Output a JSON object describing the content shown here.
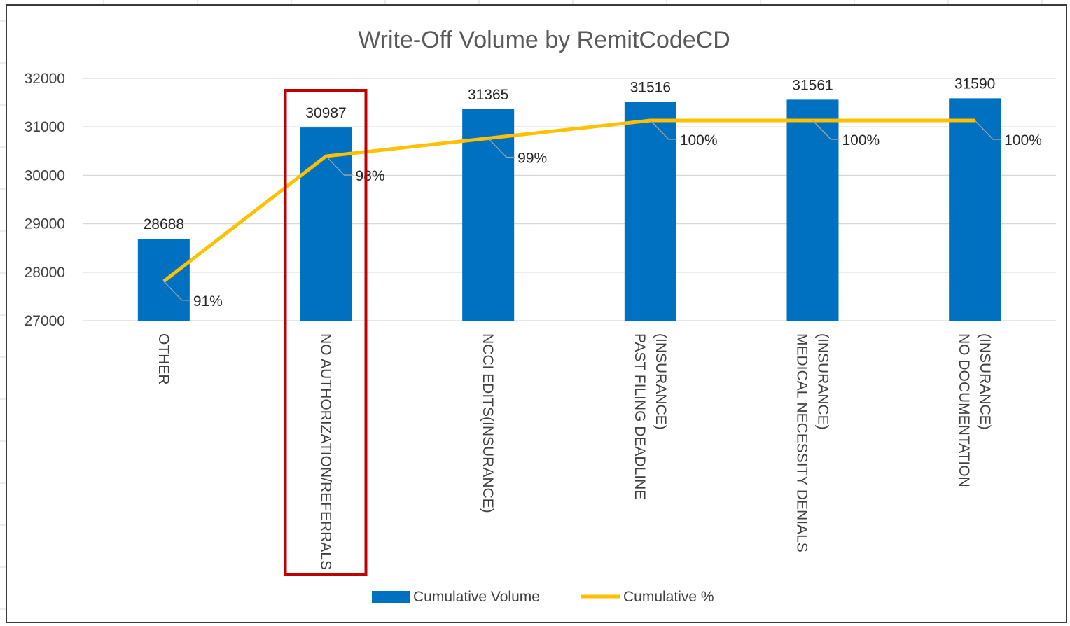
{
  "chart_data": {
    "type": "bar",
    "title": "Write-Off Volume by RemitCodeCD",
    "xlabel": "",
    "ylabel": "",
    "ylim": [
      27000,
      32000
    ],
    "yticks": [
      "27000",
      "28000",
      "29000",
      "30000",
      "31000",
      "32000"
    ],
    "grid": true,
    "legend_position": "bottom",
    "categories": [
      [
        "OTHER"
      ],
      [
        "NO AUTHORIZATION/REFERRALS"
      ],
      [
        "NCCI EDITS(INSURANCE)"
      ],
      [
        "PAST FILING DEADLINE",
        "(INSURANCE)"
      ],
      [
        "MEDICAL NECESSITY DENIALS",
        "(INSURANCE)"
      ],
      [
        "NO DOCUMENTATION",
        "(INSURANCE)"
      ]
    ],
    "series": [
      {
        "name": "Cumulative Volume",
        "type": "bar",
        "color": "#0070c0",
        "values": [
          28688,
          30987,
          31365,
          31516,
          31561,
          31590
        ],
        "labels": [
          "28688",
          "30987",
          "31365",
          "31516",
          "31561",
          "31590"
        ]
      },
      {
        "name": "Cumulative %",
        "type": "line",
        "color": "#ffc000",
        "values": [
          0.91,
          0.98,
          0.99,
          1.0,
          1.0,
          1.0
        ],
        "labels": [
          "91%",
          "98%",
          "99%",
          "100%",
          "100%",
          "100%"
        ]
      }
    ],
    "highlight": {
      "category_index": 1,
      "color": "#c00000"
    }
  }
}
